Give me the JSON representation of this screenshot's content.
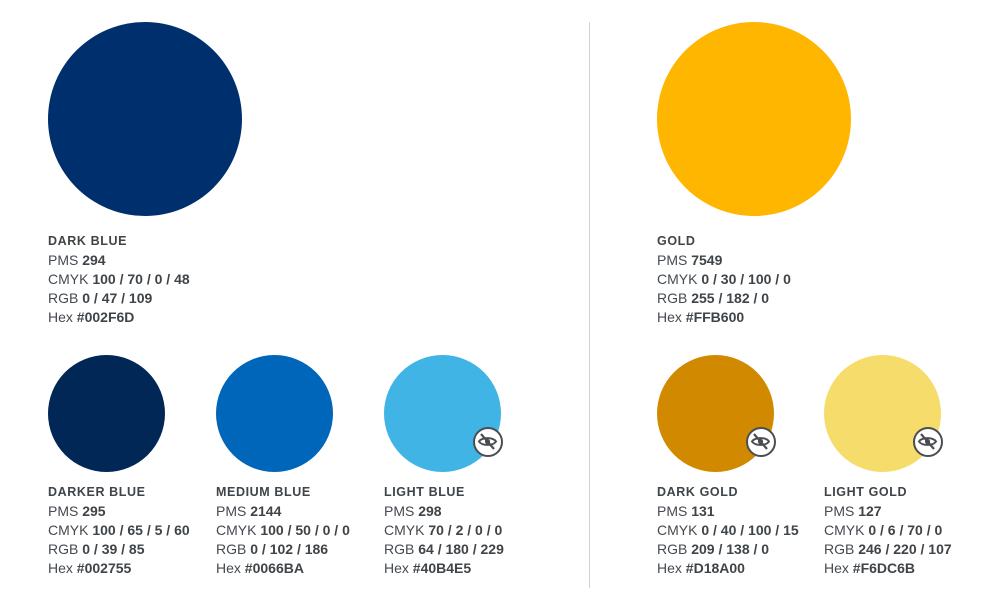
{
  "colors": [
    {
      "key": "dark_blue",
      "name": "DARK BLUE",
      "pms_label": "PMS",
      "pms": "294",
      "cmyk_label": "CMYK",
      "cmyk": "100 / 70 / 0 / 48",
      "rgb_label": "RGB",
      "rgb": "0 / 47 / 109",
      "hex_label": "Hex",
      "hex": "#002F6D",
      "fill": "#002F6D",
      "icon": null
    },
    {
      "key": "darker_blue",
      "name": "DARKER BLUE",
      "pms_label": "PMS",
      "pms": "295",
      "cmyk_label": "CMYK",
      "cmyk": "100 / 65 / 5 / 60",
      "rgb_label": "RGB",
      "rgb": "0 / 39 / 85",
      "hex_label": "Hex",
      "hex": "#002755",
      "fill": "#002755",
      "icon": null
    },
    {
      "key": "medium_blue",
      "name": "MEDIUM BLUE",
      "pms_label": "PMS",
      "pms": "2144",
      "cmyk_label": "CMYK",
      "cmyk": "100 / 50 / 0 / 0",
      "rgb_label": "RGB",
      "rgb": "0 / 102 / 186",
      "hex_label": "Hex",
      "hex": "#0066BA",
      "fill": "#0066BA",
      "icon": null
    },
    {
      "key": "light_blue",
      "name": "LIGHT BLUE",
      "pms_label": "PMS",
      "pms": "298",
      "cmyk_label": "CMYK",
      "cmyk": "70 / 2 / 0 / 0",
      "rgb_label": "RGB",
      "rgb": "64 / 180 / 229",
      "hex_label": "Hex",
      "hex": "#40B4E5",
      "fill": "#40B4E5",
      "icon": "low-vision-icon"
    },
    {
      "key": "gold",
      "name": "GOLD",
      "pms_label": "PMS",
      "pms": "7549",
      "cmyk_label": "CMYK",
      "cmyk": "0 / 30 / 100 / 0",
      "rgb_label": "RGB",
      "rgb": "255 / 182 / 0",
      "hex_label": "Hex",
      "hex": "#FFB600",
      "fill": "#FFB600",
      "icon": null
    },
    {
      "key": "dark_gold",
      "name": "DARK GOLD",
      "pms_label": "PMS",
      "pms": "131",
      "cmyk_label": "CMYK",
      "cmyk": "0 / 40 / 100 / 15",
      "rgb_label": "RGB",
      "rgb": "209 / 138 / 0",
      "hex_label": "Hex",
      "hex": "#D18A00",
      "fill": "#D18A00",
      "icon": "low-vision-icon"
    },
    {
      "key": "light_gold",
      "name": "LIGHT GOLD",
      "pms_label": "PMS",
      "pms": "127",
      "cmyk_label": "CMYK",
      "cmyk": "0 / 6 / 70 / 0",
      "rgb_label": "RGB",
      "rgb": "246 / 220 / 107",
      "hex_label": "Hex",
      "hex": "#F6DC6B",
      "fill": "#F6DC6B",
      "icon": "low-vision-icon"
    }
  ]
}
